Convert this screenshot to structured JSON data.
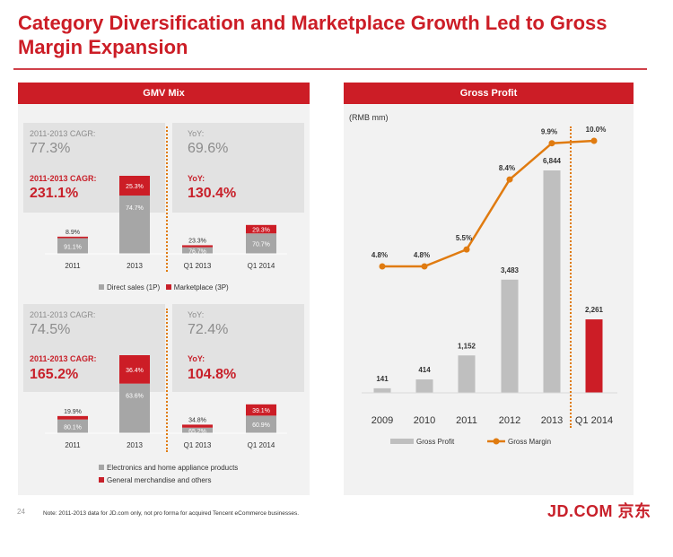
{
  "slide": {
    "title": "Category Diversification and Marketplace Growth Led to Gross Margin Expansion",
    "page_number": "24",
    "footnote": "Note: 2011-2013 data for JD.com only, not pro forma for acquired Tencent eCommerce businesses.",
    "logo": "JD.COM 京东"
  },
  "colors": {
    "accent": "#cc1d26",
    "gray_bar": "#a6a6a6",
    "orange_line": "#e07b10",
    "panel_bg": "#f2f2f2"
  },
  "gmv_panel": {
    "header": "GMV Mix",
    "top": {
      "cagr_gray_label": "2011-2013 CAGR:",
      "cagr_gray_value": "77.3%",
      "cagr_red_label": "2011-2013 CAGR:",
      "cagr_red_value": "231.1%",
      "yoy_gray_label": "YoY:",
      "yoy_gray_value": "69.6%",
      "yoy_red_label": "YoY:",
      "yoy_red_value": "130.4%",
      "legend_gray": "Direct sales (1P)",
      "legend_red": "Marketplace (3P)"
    },
    "bottom": {
      "cagr_gray_label": "2011-2013 CAGR:",
      "cagr_gray_value": "74.5%",
      "cagr_red_label": "2011-2013 CAGR:",
      "cagr_red_value": "165.2%",
      "yoy_gray_label": "YoY:",
      "yoy_gray_value": "72.4%",
      "yoy_red_label": "YoY:",
      "yoy_red_value": "104.8%",
      "legend_gray": "Electronics and home appliance products",
      "legend_red": "General merchandise and others"
    }
  },
  "gross_profit_panel": {
    "header": "Gross Profit",
    "unit": "(RMB mm)",
    "legend_bar": "Gross Profit",
    "legend_line": "Gross Margin"
  },
  "chart_data": [
    {
      "type": "bar",
      "stacked": true,
      "categories": [
        "2011",
        "2013",
        "Q1 2013",
        "Q1 2014"
      ],
      "series": [
        {
          "name": "Direct sales (1P)",
          "values": [
            "91.1%",
            "74.7%",
            "76.7%",
            "70.7%"
          ],
          "color": "#a6a6a6"
        },
        {
          "name": "Marketplace (3P)",
          "values": [
            "8.9%",
            "25.3%",
            "23.3%",
            "29.3%"
          ],
          "color": "#cc1d26"
        }
      ],
      "relative_heights": [
        0.22,
        1.0,
        0.11,
        0.37
      ]
    },
    {
      "type": "bar",
      "stacked": true,
      "categories": [
        "2011",
        "2013",
        "Q1 2013",
        "Q1 2014"
      ],
      "series": [
        {
          "name": "Electronics and home appliance products",
          "values": [
            "80.1%",
            "63.6%",
            "65.2%",
            "60.9%"
          ],
          "color": "#a6a6a6"
        },
        {
          "name": "General merchandise and others",
          "values": [
            "19.9%",
            "36.4%",
            "34.8%",
            "39.1%"
          ],
          "color": "#cc1d26"
        }
      ],
      "relative_heights": [
        0.22,
        1.0,
        0.11,
        0.37
      ]
    },
    {
      "type": "bar+line",
      "categories": [
        "2009",
        "2010",
        "2011",
        "2012",
        "2013",
        "Q1 2014"
      ],
      "ylabel": "(RMB mm)",
      "bars": {
        "name": "Gross Profit",
        "values": [
          141,
          414,
          1152,
          3483,
          6844,
          2261
        ],
        "labels": [
          "141",
          "414",
          "1,152",
          "3,483",
          "6,844",
          "2,261"
        ],
        "colors": [
          "#bfbfbf",
          "#bfbfbf",
          "#bfbfbf",
          "#bfbfbf",
          "#bfbfbf",
          "#cc1d26"
        ]
      },
      "line": {
        "name": "Gross Margin",
        "values": [
          4.8,
          4.8,
          5.5,
          8.4,
          9.9,
          10.0
        ],
        "labels": [
          "4.8%",
          "4.8%",
          "5.5%",
          "8.4%",
          "9.9%",
          "10.0%"
        ],
        "color": "#e07b10"
      }
    }
  ]
}
